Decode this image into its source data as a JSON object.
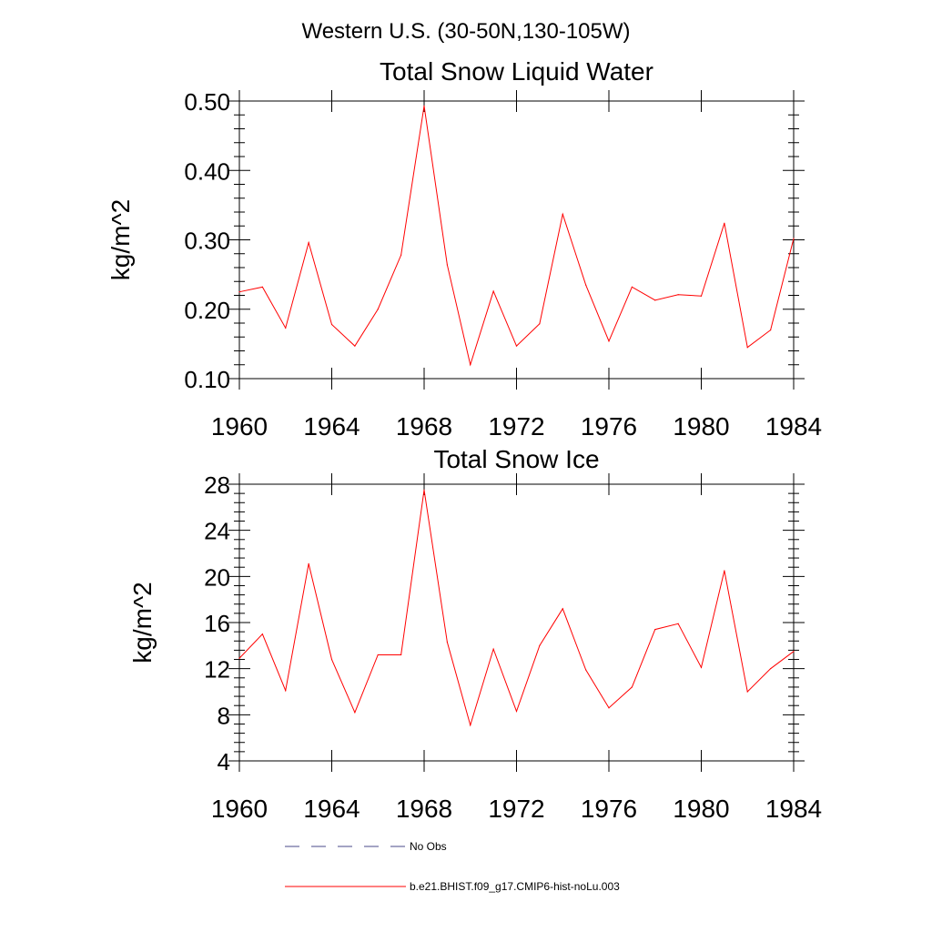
{
  "page_title": "Western U.S. (30-50N,130-105W)",
  "colors": {
    "model_line": "#ff0000",
    "obs_line": "#4a4a8a",
    "axis": "#000000"
  },
  "legend": {
    "obs_label": "No Obs",
    "model_label": "b.e21.BHIST.f09_g17.CMIP6-hist-noLu.003"
  },
  "chart_data": [
    {
      "type": "line",
      "title": "Total Snow Liquid Water",
      "ylabel": "kg/m^2",
      "xlabel": "",
      "xlim": [
        1960,
        1984
      ],
      "ylim": [
        0.1,
        0.5
      ],
      "grid": false,
      "legend_placement": "bottom",
      "x_ticks": [
        1960,
        1964,
        1968,
        1972,
        1976,
        1980,
        1984
      ],
      "x_tick_labels": [
        "1960",
        "1964",
        "1968",
        "1972",
        "1976",
        "1980",
        "1984"
      ],
      "y_ticks": [
        0.1,
        0.2,
        0.3,
        0.4,
        0.5
      ],
      "y_tick_labels": [
        "0.10",
        "0.20",
        "0.30",
        "0.40",
        "0.50"
      ],
      "x": [
        1960,
        1961,
        1962,
        1963,
        1964,
        1965,
        1966,
        1967,
        1968,
        1969,
        1970,
        1971,
        1972,
        1973,
        1974,
        1975,
        1976,
        1977,
        1978,
        1979,
        1980,
        1981,
        1982,
        1983,
        1984
      ],
      "series": [
        {
          "name": "b.e21.BHIST.f09_g17.CMIP6-hist-noLu.003",
          "values": [
            0.225,
            0.232,
            0.173,
            0.296,
            0.178,
            0.147,
            0.2,
            0.278,
            0.493,
            0.264,
            0.12,
            0.226,
            0.147,
            0.179,
            0.337,
            0.235,
            0.154,
            0.232,
            0.213,
            0.221,
            0.219,
            0.324,
            0.145,
            0.17,
            0.302
          ]
        }
      ]
    },
    {
      "type": "line",
      "title": "Total Snow Ice",
      "ylabel": "kg/m^2",
      "xlabel": "",
      "xlim": [
        1960,
        1984
      ],
      "ylim": [
        4,
        28
      ],
      "grid": false,
      "legend_placement": "bottom",
      "x_ticks": [
        1960,
        1964,
        1968,
        1972,
        1976,
        1980,
        1984
      ],
      "x_tick_labels": [
        "1960",
        "1964",
        "1968",
        "1972",
        "1976",
        "1980",
        "1984"
      ],
      "y_ticks": [
        4,
        8,
        12,
        16,
        20,
        24,
        28
      ],
      "y_tick_labels": [
        "4",
        "8",
        "12",
        "16",
        "20",
        "24",
        "28"
      ],
      "x": [
        1960,
        1961,
        1962,
        1963,
        1964,
        1965,
        1966,
        1967,
        1968,
        1969,
        1970,
        1971,
        1972,
        1973,
        1974,
        1975,
        1976,
        1977,
        1978,
        1979,
        1980,
        1981,
        1982,
        1983,
        1984
      ],
      "series": [
        {
          "name": "b.e21.BHIST.f09_g17.CMIP6-hist-noLu.003",
          "values": [
            12.9,
            15.0,
            10.1,
            21.1,
            12.8,
            8.2,
            13.2,
            13.2,
            27.5,
            14.3,
            7.1,
            13.7,
            8.3,
            14.0,
            17.2,
            11.9,
            8.6,
            10.4,
            15.4,
            15.9,
            12.1,
            20.5,
            10.0,
            12.0,
            13.5
          ]
        }
      ]
    }
  ]
}
